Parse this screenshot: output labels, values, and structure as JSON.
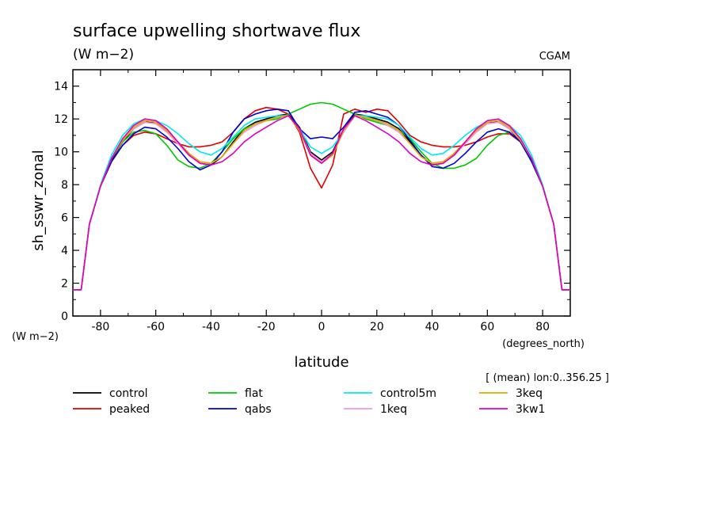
{
  "chart_data": {
    "type": "line",
    "title": "surface upwelling shortwave flux",
    "subtitle": "(W m−2)",
    "source_label": "CGAM",
    "xlabel": "latitude",
    "xunits": "(degrees_north)",
    "ylabel": "sh_sswr_zonal",
    "yunits": "(W m−2)",
    "mean_note": "[ (mean) lon:0..356.25 ]",
    "xlim": [
      -90,
      90
    ],
    "ylim": [
      0,
      15
    ],
    "xticks": [
      -80,
      -60,
      -40,
      -20,
      0,
      20,
      40,
      60,
      80
    ],
    "yticks": [
      0,
      2,
      4,
      6,
      8,
      10,
      12,
      14
    ],
    "x": [
      -90,
      -87,
      -84,
      -80,
      -76,
      -72,
      -68,
      -64,
      -60,
      -56,
      -52,
      -48,
      -44,
      -40,
      -36,
      -32,
      -28,
      -24,
      -20,
      -16,
      -12,
      -8,
      -4,
      0,
      4,
      8,
      12,
      16,
      20,
      24,
      28,
      32,
      36,
      40,
      44,
      48,
      52,
      56,
      60,
      64,
      68,
      72,
      76,
      80,
      84,
      87,
      90
    ],
    "series": [
      {
        "name": "control",
        "color": "#000000",
        "values": [
          1.6,
          1.6,
          5.6,
          7.9,
          9.5,
          10.6,
          11.4,
          11.8,
          11.8,
          11.3,
          10.6,
          9.9,
          9.3,
          9.2,
          9.7,
          10.6,
          11.4,
          11.8,
          12.0,
          12.2,
          12.3,
          11.5,
          10.0,
          9.5,
          10.0,
          11.4,
          12.3,
          12.2,
          12.0,
          11.8,
          11.4,
          10.6,
          9.8,
          9.2,
          9.3,
          9.9,
          10.6,
          11.3,
          11.8,
          11.8,
          11.4,
          10.6,
          9.5,
          7.9,
          5.6,
          1.6,
          1.6
        ]
      },
      {
        "name": "peaked",
        "color": "#e00000",
        "values": [
          1.6,
          1.6,
          5.6,
          7.9,
          9.4,
          10.4,
          11.0,
          11.2,
          11.1,
          10.8,
          10.5,
          10.3,
          10.3,
          10.4,
          10.6,
          11.2,
          12.0,
          12.5,
          12.7,
          12.6,
          12.3,
          11.2,
          9.0,
          7.8,
          9.2,
          12.3,
          12.6,
          12.4,
          12.6,
          12.5,
          11.8,
          11.0,
          10.6,
          10.4,
          10.3,
          10.3,
          10.4,
          10.6,
          10.9,
          11.1,
          11.1,
          10.6,
          9.4,
          7.9,
          5.6,
          1.6,
          1.6
        ]
      },
      {
        "name": "flat",
        "color": "#00c800",
        "values": [
          1.6,
          1.6,
          5.6,
          7.9,
          9.6,
          10.6,
          11.2,
          11.3,
          11.1,
          10.4,
          9.5,
          9.1,
          9.0,
          9.3,
          10.0,
          10.8,
          11.4,
          11.7,
          11.9,
          12.0,
          12.3,
          12.6,
          12.9,
          13.0,
          12.9,
          12.6,
          12.3,
          12.0,
          11.8,
          11.6,
          11.3,
          10.8,
          10.0,
          9.3,
          9.0,
          9.0,
          9.2,
          9.6,
          10.4,
          11.0,
          11.2,
          10.6,
          9.6,
          7.9,
          5.6,
          1.6,
          1.6
        ]
      },
      {
        "name": "qabs",
        "color": "#0000d0",
        "values": [
          1.6,
          1.6,
          5.6,
          7.9,
          9.4,
          10.4,
          11.1,
          11.5,
          11.4,
          10.9,
          10.2,
          9.4,
          8.9,
          9.2,
          10.0,
          11.2,
          12.0,
          12.3,
          12.5,
          12.6,
          12.5,
          11.4,
          10.8,
          10.9,
          10.8,
          11.5,
          12.4,
          12.5,
          12.3,
          12.1,
          11.6,
          10.7,
          9.8,
          9.1,
          9.0,
          9.3,
          9.9,
          10.6,
          11.2,
          11.4,
          11.2,
          10.6,
          9.4,
          7.9,
          5.6,
          1.6,
          1.6
        ]
      },
      {
        "name": "control5m",
        "color": "#00e8f0",
        "values": [
          1.6,
          1.6,
          5.6,
          8.0,
          9.8,
          11.0,
          11.7,
          12.0,
          11.9,
          11.6,
          11.1,
          10.5,
          10.0,
          9.8,
          10.2,
          10.9,
          11.6,
          12.0,
          12.1,
          12.2,
          12.2,
          11.4,
          10.3,
          9.9,
          10.3,
          11.2,
          12.2,
          12.2,
          12.1,
          12.0,
          11.6,
          10.9,
          10.2,
          9.8,
          9.9,
          10.4,
          11.0,
          11.5,
          11.8,
          11.9,
          11.6,
          11.0,
          9.8,
          8.0,
          5.6,
          1.6,
          1.6
        ]
      },
      {
        "name": "1keq",
        "color": "#ee99dd",
        "values": [
          1.6,
          1.6,
          5.6,
          7.9,
          9.6,
          10.7,
          11.4,
          11.8,
          11.7,
          11.2,
          10.5,
          9.8,
          9.4,
          9.3,
          9.7,
          10.5,
          11.2,
          11.6,
          11.9,
          12.1,
          12.2,
          11.4,
          9.9,
          9.4,
          9.9,
          11.2,
          12.2,
          12.1,
          11.9,
          11.6,
          11.2,
          10.5,
          9.7,
          9.3,
          9.4,
          9.8,
          10.5,
          11.2,
          11.7,
          11.8,
          11.4,
          10.7,
          9.6,
          7.9,
          5.6,
          1.6,
          1.6
        ]
      },
      {
        "name": "3keq",
        "color": "#e8a800",
        "values": [
          1.6,
          1.6,
          5.6,
          7.9,
          9.6,
          10.7,
          11.5,
          11.9,
          11.8,
          11.3,
          10.6,
          9.9,
          9.4,
          9.3,
          9.7,
          10.5,
          11.3,
          11.7,
          11.9,
          12.1,
          12.2,
          11.3,
          9.8,
          9.3,
          9.8,
          11.3,
          12.2,
          12.1,
          11.9,
          11.7,
          11.3,
          10.5,
          9.7,
          9.3,
          9.4,
          9.9,
          10.6,
          11.3,
          11.8,
          11.9,
          11.5,
          10.7,
          9.6,
          7.9,
          5.6,
          1.6,
          1.6
        ]
      },
      {
        "name": "3kw1",
        "color": "#e000c0",
        "values": [
          1.6,
          1.6,
          5.6,
          7.9,
          9.6,
          10.8,
          11.6,
          12.0,
          11.9,
          11.4,
          10.6,
          9.8,
          9.3,
          9.2,
          9.4,
          9.9,
          10.6,
          11.1,
          11.5,
          11.9,
          12.2,
          11.4,
          9.8,
          9.3,
          9.9,
          11.4,
          12.2,
          11.9,
          11.5,
          11.1,
          10.6,
          9.9,
          9.4,
          9.2,
          9.3,
          9.8,
          10.6,
          11.4,
          11.9,
          12.0,
          11.6,
          10.8,
          9.6,
          7.9,
          5.6,
          1.6,
          1.6
        ]
      }
    ],
    "legend": {
      "placement": "below plot",
      "items": [
        "control",
        "flat",
        "control5m",
        "3keq",
        "peaked",
        "qabs",
        "1keq",
        "3kw1"
      ]
    },
    "grid": false
  }
}
